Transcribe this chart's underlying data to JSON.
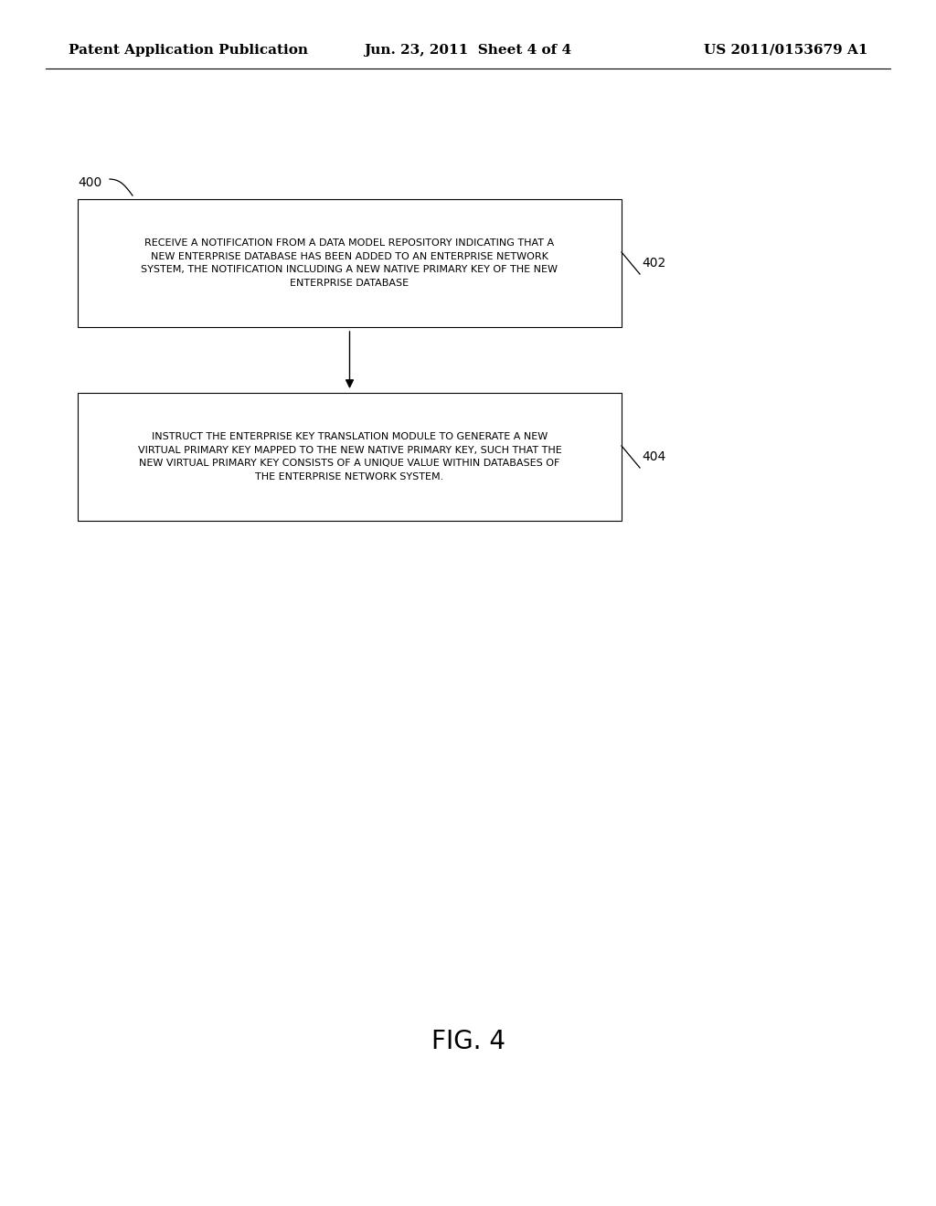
{
  "background_color": "#ffffff",
  "header_left": "Patent Application Publication",
  "header_center": "Jun. 23, 2011  Sheet 4 of 4",
  "header_right": "US 2011/0153679 A1",
  "header_fontsize": 11,
  "fig_label": "400",
  "fig_caption": "FIG. 4",
  "fig_caption_fontsize": 20,
  "boxes": [
    {
      "id": "402",
      "label": "402",
      "text": "RECEIVE A NOTIFICATION FROM A DATA MODEL REPOSITORY INDICATING THAT A\nNEW ENTERPRISE DATABASE HAS BEEN ADDED TO AN ENTERPRISE NETWORK\nSYSTEM, THE NOTIFICATION INCLUDING A NEW NATIVE PRIMARY KEY OF THE NEW\nENTERPRISE DATABASE",
      "fontsize": 8.0
    },
    {
      "id": "404",
      "label": "404",
      "text": "INSTRUCT THE ENTERPRISE KEY TRANSLATION MODULE TO GENERATE A NEW\nVIRTUAL PRIMARY KEY MAPPED TO THE NEW NATIVE PRIMARY KEY, SUCH THAT THE\nNEW VIRTUAL PRIMARY KEY CONSISTS OF A UNIQUE VALUE WITHIN DATABASES OF\nTHE ENTERPRISE NETWORK SYSTEM.",
      "fontsize": 8.0
    }
  ]
}
